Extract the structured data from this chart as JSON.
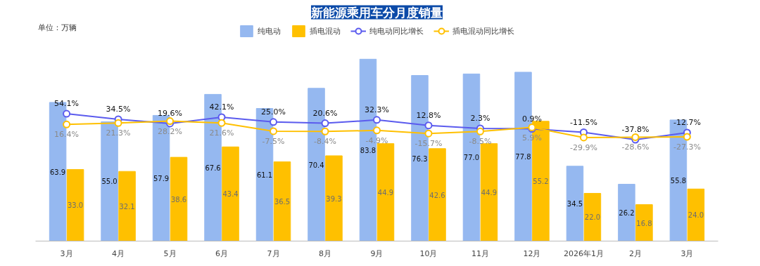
{
  "chart_data": {
    "type": "bar",
    "title": "新能源乘用车分月度销量",
    "annotations": [
      "单位：万辆"
    ],
    "categories": [
      "3月",
      "4月",
      "5月",
      "6月",
      "7月",
      "8月",
      "9月",
      "10月",
      "11月",
      "12月",
      "2026年1月",
      "2月",
      "3月"
    ],
    "series": [
      {
        "name": "纯电动",
        "color": "#95b8f0",
        "values": [
          63.9,
          55.0,
          57.9,
          67.6,
          61.1,
          70.4,
          83.8,
          76.3,
          77.0,
          77.8,
          34.5,
          26.2,
          55.8
        ],
        "value_labels": [
          "63.9",
          "55.0",
          "57.9",
          "67.6",
          "61.1",
          "70.4",
          "83.8",
          "76.3",
          "77.0",
          "77.8",
          "34.5",
          "26.2",
          "55.8"
        ]
      },
      {
        "name": "插电混动",
        "color": "#ffc000",
        "values": [
          33.0,
          32.1,
          38.6,
          43.4,
          36.5,
          39.3,
          44.9,
          42.6,
          44.9,
          55.2,
          22.0,
          16.8,
          24.0
        ],
        "value_labels": [
          "33.0",
          "32.1",
          "38.6",
          "43.4",
          "36.5",
          "39.3",
          "44.9",
          "42.6",
          "44.9",
          "55.2",
          "22.0",
          "16.8",
          "24.0"
        ]
      },
      {
        "name": "纯电动同比增长",
        "type": "line",
        "axis": "y2",
        "color": "#5b5bee",
        "values": [
          54.1,
          34.5,
          19.6,
          42.1,
          25.0,
          20.6,
          32.3,
          12.8,
          2.3,
          0.9,
          -11.5,
          -37.8,
          -12.7
        ],
        "value_labels": [
          "54.1%",
          "34.5%",
          "19.6%",
          "42.1%",
          "25.0%",
          "20.6%",
          "32.3%",
          "12.8%",
          "2.3%",
          "0.9%",
          "-11.5%",
          "-37.8%",
          "-12.7%"
        ]
      },
      {
        "name": "插电混动同比增长",
        "type": "line",
        "axis": "y2",
        "color": "#ffc000",
        "values": [
          16.4,
          21.3,
          28.2,
          21.6,
          -7.5,
          -8.4,
          -4.9,
          -15.7,
          -8.5,
          5.9,
          -29.9,
          -28.6,
          -27.3
        ],
        "value_labels": [
          "16.4%",
          "21.3%",
          "28.2%",
          "21.6%",
          "-7.5%",
          "-8.4%",
          "-4.9%",
          "-15.7%",
          "-8.5%",
          "5.9%",
          "-29.9%",
          "-28.6%",
          "-27.3%"
        ]
      }
    ],
    "tick_labels": "x",
    "data_labels": true,
    "legend": "top",
    "marker": "circle"
  }
}
